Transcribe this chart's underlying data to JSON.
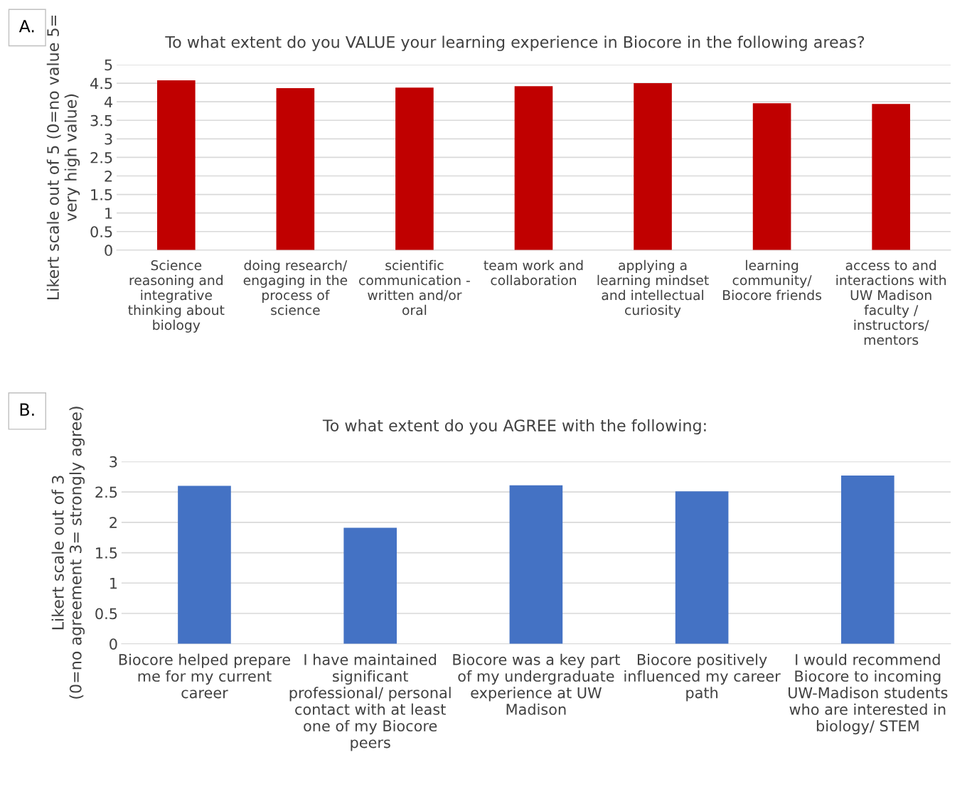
{
  "chart_data": [
    {
      "type": "bar",
      "title": "To what extent do you VALUE your learning experience in Biocore in the following areas?",
      "ylabel": "Likert scale out of 5 (0=no value 5=\nvery high value)",
      "categories": [
        "Science\nreasoning and\nintegrative\nthinking about\nbiology",
        "doing research/\nengaging in the\nprocess of\nscience",
        "scientific\ncommunication -\nwritten and/or\noral",
        "team work and\ncollaboration",
        "applying a\nlearning mindset\nand intellectual\ncuriosity",
        "learning\ncommunity/\nBiocore friends",
        "access to and\ninteractions with\nUW Madison\nfaculty /\ninstructors/\nmentors"
      ],
      "values": [
        4.58,
        4.37,
        4.38,
        4.42,
        4.5,
        3.96,
        3.94
      ],
      "color": "#c00000",
      "ylim": [
        0,
        5
      ],
      "yticks": [
        0,
        0.5,
        1,
        1.5,
        2,
        2.5,
        3,
        3.5,
        4,
        4.5,
        5
      ],
      "grid": "y",
      "annotations": [
        "A."
      ]
    },
    {
      "type": "bar",
      "title": "To what extent do you AGREE with the following:",
      "ylabel": "Likert scale out of 3\n(0=no agreement 3= strongly agree)",
      "categories": [
        "Biocore helped prepare\nme for my current\ncareer",
        "I have maintained\nsignificant\nprofessional/ personal\ncontact with at least\none of my Biocore\npeers",
        "Biocore was a key part\nof my undergraduate\nexperience at UW\nMadison",
        "Biocore positively\ninfluenced my career\npath",
        "I would recommend\nBiocore to incoming\nUW-Madison students\nwho are interested in\nbiology/ STEM"
      ],
      "values": [
        2.6,
        1.91,
        2.61,
        2.51,
        2.77
      ],
      "color": "#4472c4",
      "ylim": [
        0,
        3
      ],
      "yticks": [
        0,
        0.5,
        1,
        1.5,
        2,
        2.5,
        3
      ],
      "grid": "y",
      "annotations": [
        "B."
      ]
    }
  ]
}
